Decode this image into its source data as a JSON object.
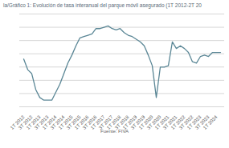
{
  "chart_data": {
    "type": "line",
    "title": "la/Gráfico 1: Evolución de tasa interanual del parque móvil asegurado (1T 2012-2T 20",
    "caption": "Fuente: FIVA",
    "categories": [
      "1T 2012",
      null,
      "3T 2012",
      null,
      "1T 2013",
      null,
      "3T 2013",
      null,
      "1T 2014",
      null,
      "3T 2014",
      null,
      "1T 2015",
      null,
      "3T 2015",
      null,
      "1T 2016",
      null,
      "3T 2016",
      null,
      "1T 2017",
      null,
      "3T 2017",
      null,
      "1T 2018",
      null,
      "3T 2018",
      null,
      "1T 2019",
      null,
      "3T 2019",
      null,
      "1T 2020",
      null,
      "3T 2020",
      null,
      "1T 2021",
      null,
      "3T 2021",
      null,
      "1T 2022",
      null,
      "3T 2022",
      null,
      "1T 2023",
      null,
      "3T 2023",
      null,
      "1T 2024",
      null
    ],
    "values": [
      0.6,
      -0.2,
      -0.5,
      -1.7,
      -2.3,
      -2.5,
      -2.5,
      -2.5,
      -1.9,
      -1.3,
      -0.5,
      0.3,
      0.9,
      1.6,
      2.2,
      2.3,
      2.4,
      2.5,
      2.9,
      2.9,
      3.0,
      3.1,
      2.9,
      2.8,
      2.9,
      2.6,
      2.4,
      2.3,
      2.1,
      1.9,
      1.6,
      0.9,
      0.1,
      -2.3,
      0.0,
      0.0,
      0.1,
      1.9,
      1.4,
      1.6,
      1.4,
      1.1,
      0.4,
      0.3,
      0.8,
      0.9,
      0.8,
      1.1,
      1.1,
      1.1
    ],
    "color": "#5b8796",
    "ylim": [
      -3,
      4
    ],
    "yticks": [
      -3,
      -2,
      -1,
      0,
      1,
      2,
      3,
      4
    ],
    "grid": true,
    "tick_labels": "x"
  }
}
